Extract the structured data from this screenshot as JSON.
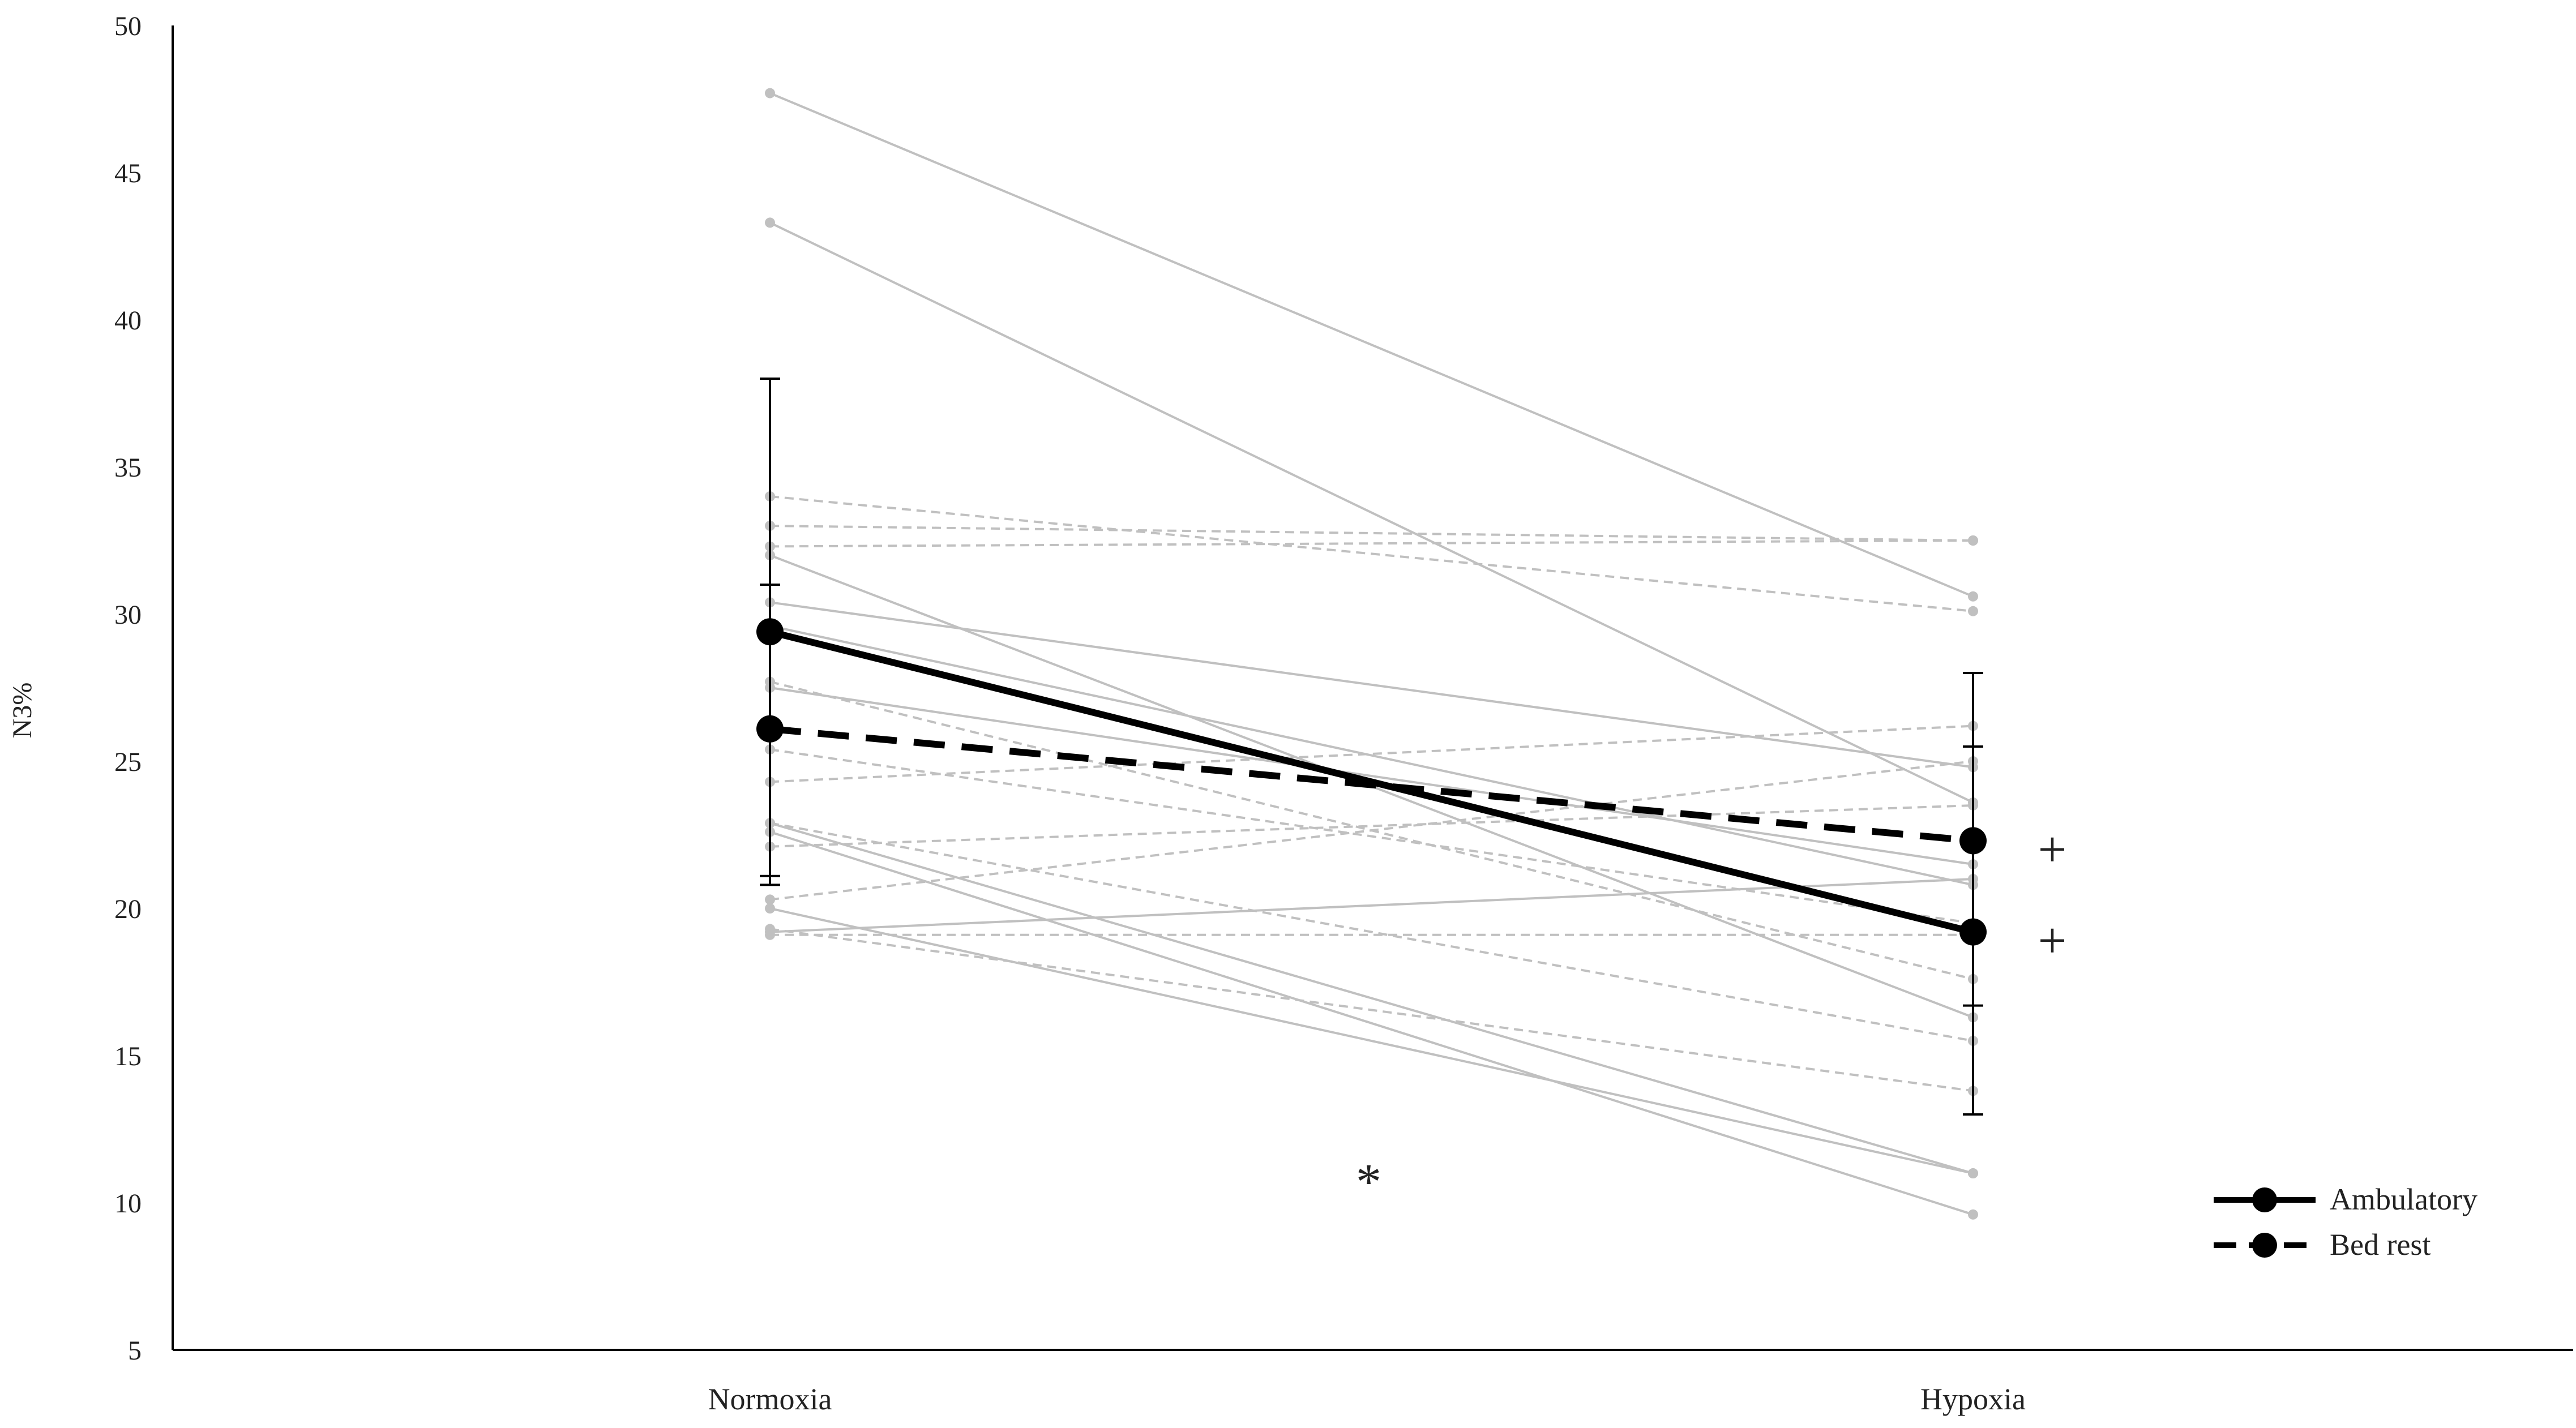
{
  "chart_data": {
    "type": "line",
    "ylabel": "N3%",
    "xlabel": "",
    "ylim": [
      5,
      50
    ],
    "yticks": [
      5,
      10,
      15,
      20,
      25,
      30,
      35,
      40,
      45,
      50
    ],
    "categories": [
      "Normoxia",
      "Hypoxia"
    ],
    "grid": false,
    "legend_position": "bottom-right",
    "series": [
      {
        "name": "Ambulatory",
        "style": "solid",
        "color": "#000000",
        "values": [
          29.4,
          19.2
        ],
        "error": [
          [
            20.8,
            38.0
          ],
          [
            13.0,
            25.5
          ]
        ]
      },
      {
        "name": "Bed rest",
        "style": "dashed",
        "color": "#000000",
        "values": [
          26.1,
          22.3
        ],
        "error": [
          [
            21.1,
            31.0
          ],
          [
            16.7,
            28.0
          ]
        ]
      }
    ],
    "individual_ambulatory": [
      [
        47.7,
        30.6
      ],
      [
        43.3,
        23.6
      ],
      [
        32.0,
        16.3
      ],
      [
        30.4,
        24.8
      ],
      [
        29.6,
        20.8
      ],
      [
        27.5,
        21.5
      ],
      [
        22.9,
        11.0
      ],
      [
        22.6,
        9.6
      ],
      [
        20.0,
        11.0
      ],
      [
        19.2,
        21.0
      ]
    ],
    "individual_bedrest": [
      [
        34.0,
        30.1
      ],
      [
        33.0,
        32.5
      ],
      [
        32.3,
        32.5
      ],
      [
        27.7,
        17.6
      ],
      [
        25.4,
        19.5
      ],
      [
        24.3,
        26.2
      ],
      [
        22.9,
        15.5
      ],
      [
        22.1,
        23.5
      ],
      [
        20.3,
        25.0
      ],
      [
        19.3,
        13.8
      ],
      [
        19.1,
        19.1
      ]
    ],
    "individual_color": "#c0c0c0",
    "annotations": [
      {
        "text": "*",
        "x": "between",
        "y": 11.0
      },
      {
        "text": "+",
        "series": "Bed rest"
      },
      {
        "text": "+",
        "series": "Ambulatory"
      }
    ]
  }
}
